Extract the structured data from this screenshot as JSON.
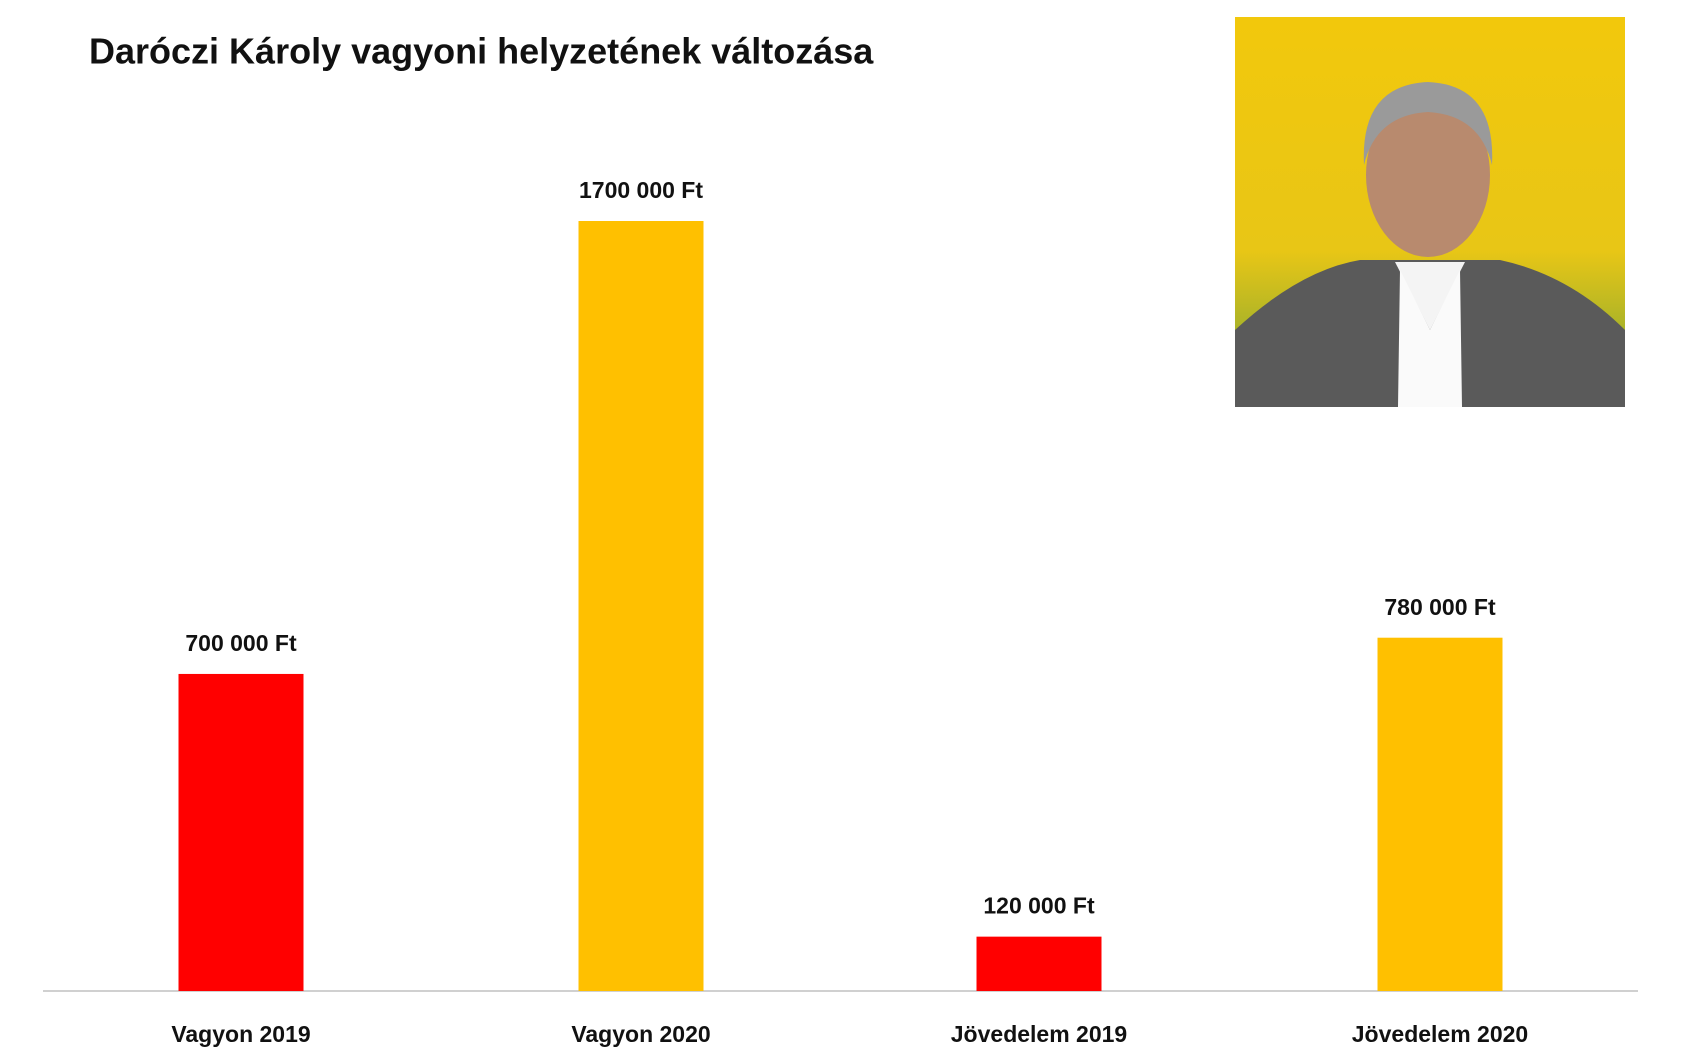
{
  "chart_data": {
    "type": "bar",
    "title": "Daróczi Károly vagyoni helyzetének változása",
    "categories": [
      "Vagyon 2019",
      "Vagyon 2020",
      "Jövedelem 2019",
      "Jövedelem 2020"
    ],
    "values": [
      700000,
      1700000,
      120000,
      780000
    ],
    "value_labels": [
      "700 000 Ft",
      "1700 000 Ft",
      "120 000 Ft",
      "780 000 Ft"
    ],
    "colors": [
      "#ff0000",
      "#ffc000",
      "#ff0000",
      "#ffc000"
    ]
  }
}
